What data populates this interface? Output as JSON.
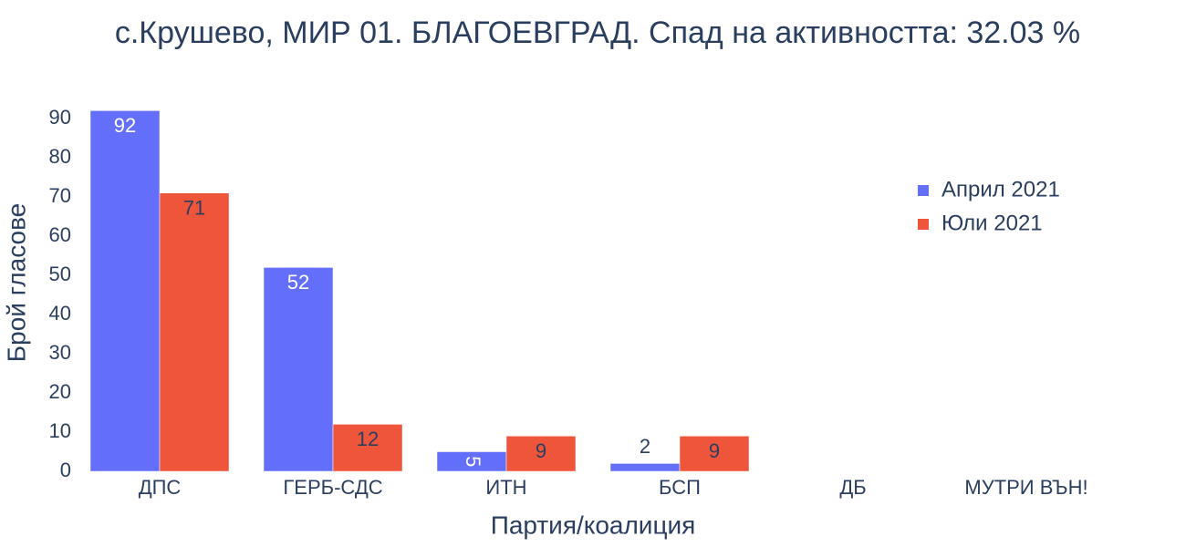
{
  "chart_data": {
    "type": "bar",
    "title": "с.Крушево, МИР 01. БЛАГОЕВГРАД. Спад на активността: 32.03 %",
    "x_label": "Партия/коалиция",
    "y_label": "Брой гласове",
    "categories": [
      "ДПС",
      "ГЕРБ-СДС",
      "ИТН",
      "БСП",
      "ДБ",
      "МУТРИ ВЪН!"
    ],
    "series": [
      {
        "name": "Април 2021",
        "color": "#636efa",
        "values": [
          92,
          52,
          5,
          2,
          0,
          null
        ]
      },
      {
        "name": "Юли 2021",
        "color": "#ef553b",
        "values": [
          71,
          12,
          9,
          9,
          0,
          null
        ]
      }
    ],
    "ylim": [
      0,
      95
    ],
    "yticks": [
      0,
      10,
      20,
      30,
      40,
      50,
      60,
      70,
      80,
      90
    ],
    "legend": "top-right"
  }
}
